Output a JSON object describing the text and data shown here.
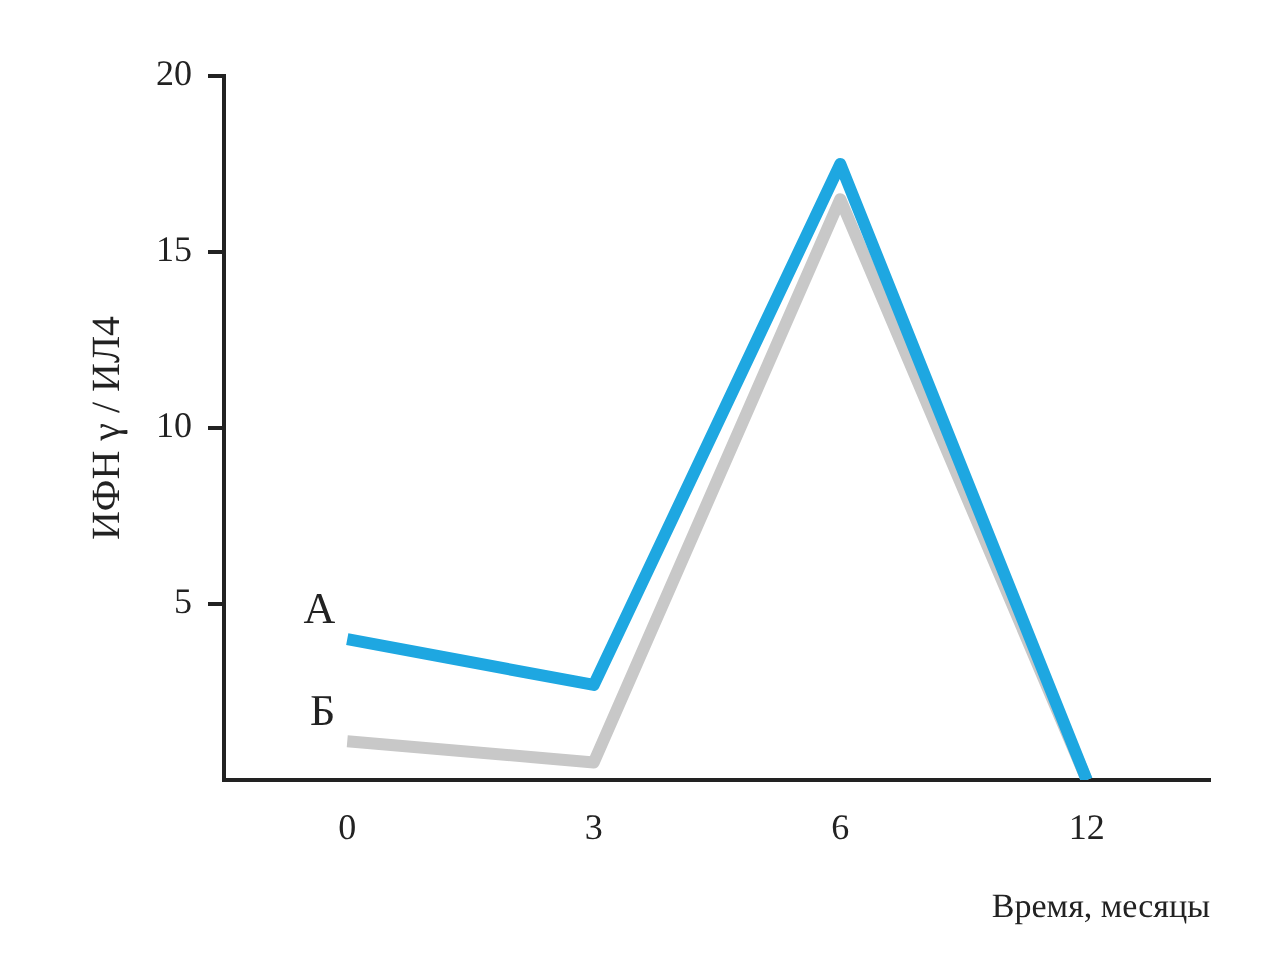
{
  "chart_data": {
    "type": "line",
    "xlabel": "Время, месяцы",
    "ylabel": "ИФН γ / ИЛ4",
    "categories": [
      "0",
      "3",
      "6",
      "12"
    ],
    "series": [
      {
        "name": "А",
        "color": "#1ea7e1",
        "values": [
          4,
          2.7,
          17.5,
          0
        ]
      },
      {
        "name": "Б",
        "color": "#c8c8c8",
        "values": [
          1.1,
          0.5,
          16.5,
          0
        ]
      }
    ],
    "ylim": [
      0,
      20
    ],
    "yticks": [
      5,
      10,
      15,
      20
    ],
    "grid": false,
    "legend": false,
    "marker": "none",
    "line_style": "solid"
  }
}
